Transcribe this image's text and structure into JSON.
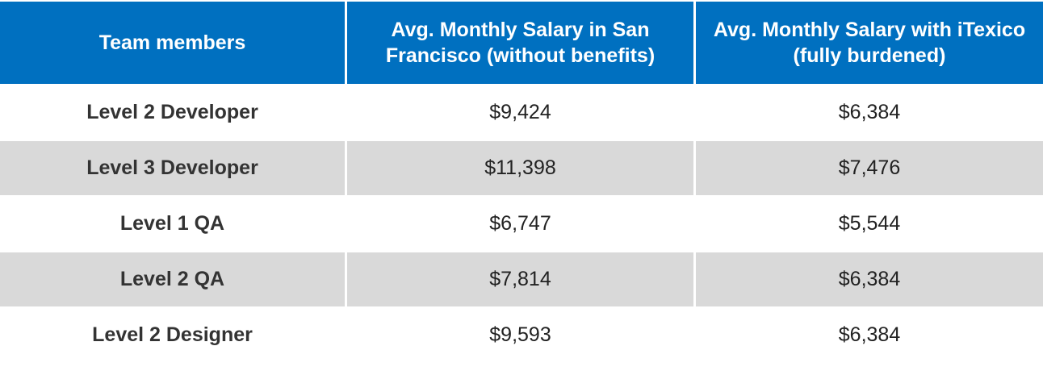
{
  "colors": {
    "header_bg": "#0070c0",
    "header_text": "#ffffff",
    "row_alt_bg": "#d9d9d9",
    "row_bg": "#ffffff"
  },
  "chart_data": {
    "type": "table",
    "columns": [
      "Team members",
      "Avg. Monthly Salary in San Francisco (without benefits)",
      "Avg. Monthly Salary with iTexico (fully burdened)"
    ],
    "rows": [
      {
        "member": "Level 2 Developer",
        "sf": "$9,424",
        "itexico": "$6,384"
      },
      {
        "member": "Level 3 Developer",
        "sf": "$11,398",
        "itexico": "$7,476"
      },
      {
        "member": "Level 1 QA",
        "sf": "$6,747",
        "itexico": "$5,544"
      },
      {
        "member": "Level 2 QA",
        "sf": "$7,814",
        "itexico": "$6,384"
      },
      {
        "member": "Level 2 Designer",
        "sf": "$9,593",
        "itexico": "$6,384"
      }
    ],
    "series": [
      {
        "name": "Avg. Monthly Salary in San Francisco (without benefits)",
        "values": [
          9424,
          11398,
          6747,
          7814,
          9593
        ]
      },
      {
        "name": "Avg. Monthly Salary with iTexico (fully burdened)",
        "values": [
          6384,
          7476,
          5544,
          6384,
          6384
        ]
      }
    ]
  }
}
